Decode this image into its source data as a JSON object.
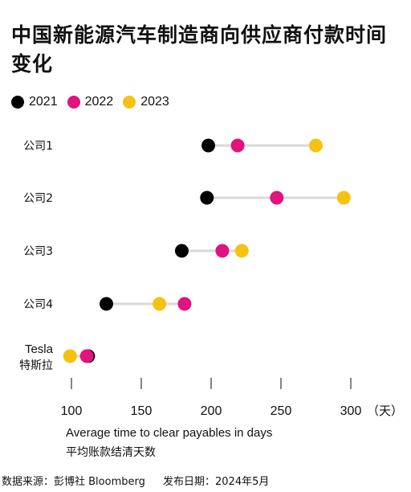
{
  "title": "中国新能源汽车制造商向供应商付款时间变化",
  "legend": [
    {
      "label": "2021",
      "color": "#000000"
    },
    {
      "label": "2022",
      "color": "#e0137f"
    },
    {
      "label": "2023",
      "color": "#f5c211"
    }
  ],
  "chart_data": {
    "type": "dot-plot",
    "categories": [
      "公司1",
      "公司2",
      "公司3",
      "公司4",
      "Tesla 特斯拉"
    ],
    "series": [
      {
        "name": "2021",
        "color": "#000000",
        "values": [
          198,
          197,
          179,
          125,
          112
        ]
      },
      {
        "name": "2022",
        "color": "#e0137f",
        "values": [
          219,
          247,
          208,
          181,
          111
        ]
      },
      {
        "name": "2023",
        "color": "#f5c211",
        "values": [
          275,
          295,
          222,
          163,
          99
        ]
      }
    ],
    "xticks": [
      100,
      150,
      200,
      250,
      300
    ],
    "xlim": [
      100,
      300
    ],
    "x_unit": "（天）",
    "xlabel": "Average time to clear payables in days",
    "xlabel_zh": "平均账款结清天数",
    "grid": false
  },
  "footer": {
    "source": "数据来源：彭博社 Bloomberg",
    "date": "发布日期：2024年5月"
  }
}
